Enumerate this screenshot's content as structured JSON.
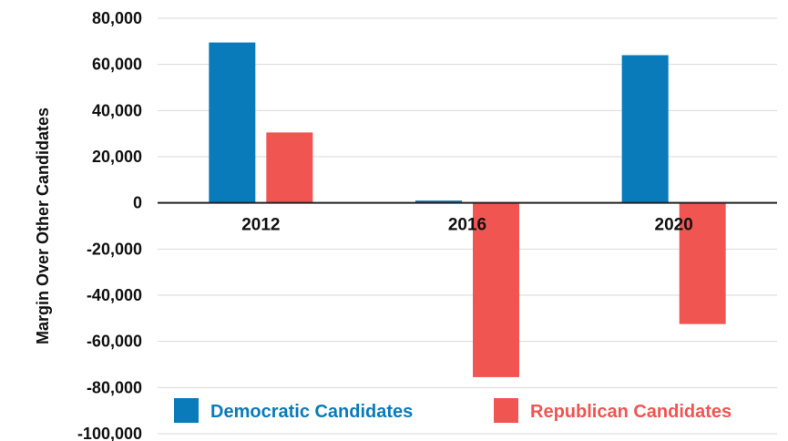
{
  "chart_data": {
    "type": "bar",
    "ylabel": "Margin Over Other Candidates",
    "categories": [
      "2012",
      "2016",
      "2020"
    ],
    "ylim": [
      -100000,
      80000
    ],
    "yticks": [
      80000,
      60000,
      40000,
      20000,
      0,
      -20000,
      -40000,
      -60000,
      -80000,
      -100000
    ],
    "ytick_labels": [
      "80,000",
      "60,000",
      "40,000",
      "20,000",
      "0",
      "-20,000",
      "-40,000",
      "-60,000",
      "-80,000",
      "-100,000"
    ],
    "grid": true,
    "legend_position": "bottom",
    "series": [
      {
        "name": "Democratic Candidates",
        "color": "#0a7bba",
        "values": [
          69500,
          1000,
          64000
        ]
      },
      {
        "name": "Republican Candidates",
        "color": "#f05552",
        "values": [
          30500,
          -75500,
          -52500
        ]
      }
    ]
  }
}
